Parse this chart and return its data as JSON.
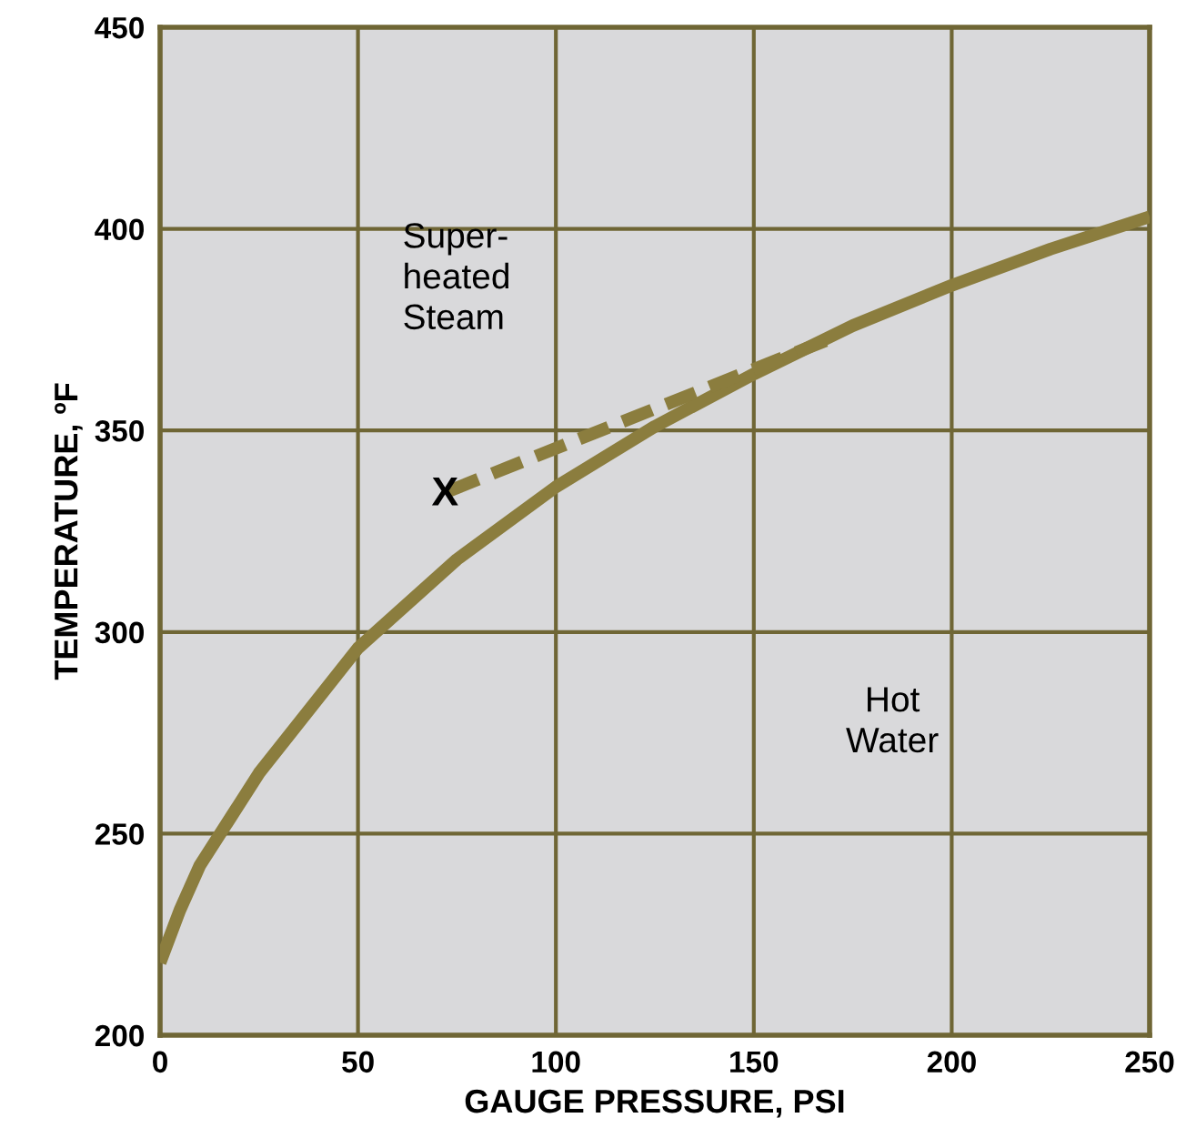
{
  "chart_data": {
    "type": "line",
    "xlabel": "GAUGE PRESSURE, PSI",
    "ylabel": "TEMPERATURE, ºF",
    "xlim": [
      0,
      250
    ],
    "ylim": [
      200,
      450
    ],
    "xticks": [
      0,
      50,
      100,
      150,
      200,
      250
    ],
    "yticks": [
      200,
      250,
      300,
      350,
      400,
      450
    ],
    "grid": true,
    "legend": false,
    "marker": "none",
    "series": [
      {
        "color": "#8b7d3e",
        "x": [
          0,
          5,
          10,
          25,
          50,
          75,
          100,
          125,
          150,
          175,
          200,
          225,
          250
        ],
        "values": [
          218,
          231,
          242,
          265,
          296,
          318,
          336,
          351,
          364,
          376,
          386,
          395,
          403
        ],
        "line_style": "solid"
      },
      {
        "color": "#8b7d3e",
        "x": [
          73,
          170
        ],
        "values": [
          335,
          373
        ],
        "line_style": "dashed"
      }
    ],
    "annotations": [
      "Super-\nheated\nSteam",
      "Hot\nWater",
      {
        "text": "X",
        "x": 72,
        "y": 334
      }
    ]
  }
}
